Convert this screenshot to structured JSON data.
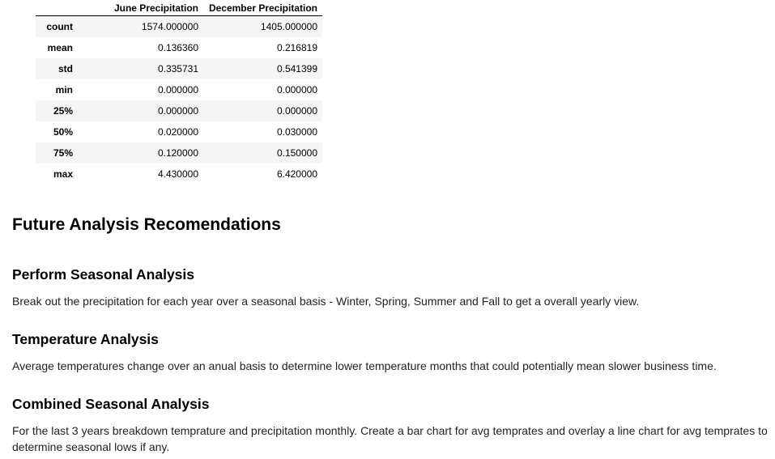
{
  "table": {
    "columns": [
      "June Precipitation",
      "December Precipitation"
    ],
    "rows": [
      {
        "label": "count",
        "june": "1574.000000",
        "dec": "1405.000000"
      },
      {
        "label": "mean",
        "june": "0.136360",
        "dec": "0.216819"
      },
      {
        "label": "std",
        "june": "0.335731",
        "dec": "0.541399"
      },
      {
        "label": "min",
        "june": "0.000000",
        "dec": "0.000000"
      },
      {
        "label": "25%",
        "june": "0.000000",
        "dec": "0.000000"
      },
      {
        "label": "50%",
        "june": "0.020000",
        "dec": "0.030000"
      },
      {
        "label": "75%",
        "june": "0.120000",
        "dec": "0.150000"
      },
      {
        "label": "max",
        "june": "4.430000",
        "dec": "6.420000"
      }
    ]
  },
  "heading": "Future Analysis Recomendations",
  "sections": [
    {
      "title": "Perform Seasonal Analysis",
      "body": "Break out the precipitation for each year over a seasonal basis - Winter, Spring, Summer and Fall to get a overall yearly view."
    },
    {
      "title": "Temperature Analysis",
      "body": "Average temperatures change over an anual basis to determine lower temperature months that could potentially mean slower business time."
    },
    {
      "title": "Combined Seasonal Analysis",
      "body": "For the last 3 years breakdown temprature and precipitation monthly. Create a bar chart for avg temprates and overlay a line chart for avg temprates to determine seasonal lows if any."
    }
  ]
}
